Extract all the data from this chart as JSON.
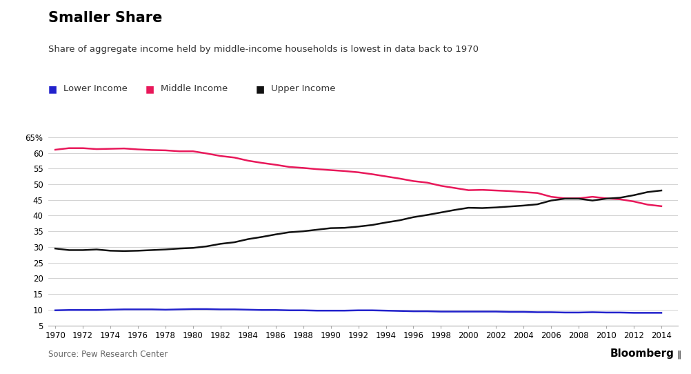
{
  "title": "Smaller Share",
  "subtitle": "Share of aggregate income held by middle-income households is lowest in data back to 1970",
  "source": "Source: Pew Research Center",
  "years": [
    1970,
    1971,
    1972,
    1973,
    1974,
    1975,
    1976,
    1977,
    1978,
    1979,
    1980,
    1981,
    1982,
    1983,
    1984,
    1985,
    1986,
    1987,
    1988,
    1989,
    1990,
    1991,
    1992,
    1993,
    1994,
    1995,
    1996,
    1997,
    1998,
    1999,
    2000,
    2001,
    2002,
    2003,
    2004,
    2005,
    2006,
    2007,
    2008,
    2009,
    2010,
    2011,
    2012,
    2013,
    2014
  ],
  "lower_income": [
    9.8,
    9.9,
    9.9,
    9.9,
    10.0,
    10.1,
    10.1,
    10.1,
    10.0,
    10.1,
    10.2,
    10.2,
    10.1,
    10.1,
    10.0,
    9.9,
    9.9,
    9.8,
    9.8,
    9.7,
    9.7,
    9.7,
    9.8,
    9.8,
    9.7,
    9.6,
    9.5,
    9.5,
    9.4,
    9.4,
    9.4,
    9.4,
    9.4,
    9.3,
    9.3,
    9.2,
    9.2,
    9.1,
    9.1,
    9.2,
    9.1,
    9.1,
    9.0,
    9.0,
    9.0
  ],
  "middle_income": [
    61.0,
    61.5,
    61.5,
    61.2,
    61.3,
    61.4,
    61.1,
    60.9,
    60.8,
    60.5,
    60.5,
    59.8,
    59.0,
    58.5,
    57.5,
    56.8,
    56.2,
    55.5,
    55.2,
    54.8,
    54.5,
    54.2,
    53.8,
    53.2,
    52.5,
    51.8,
    51.0,
    50.5,
    49.5,
    48.8,
    48.1,
    48.2,
    48.0,
    47.8,
    47.5,
    47.2,
    46.0,
    45.5,
    45.5,
    46.0,
    45.5,
    45.2,
    44.5,
    43.5,
    43.0
  ],
  "upper_income": [
    29.5,
    29.0,
    29.0,
    29.2,
    28.8,
    28.7,
    28.8,
    29.0,
    29.2,
    29.5,
    29.7,
    30.2,
    31.0,
    31.5,
    32.5,
    33.2,
    34.0,
    34.7,
    35.0,
    35.5,
    36.0,
    36.1,
    36.5,
    37.0,
    37.8,
    38.5,
    39.5,
    40.2,
    41.0,
    41.8,
    42.5,
    42.4,
    42.6,
    42.9,
    43.2,
    43.6,
    44.8,
    45.4,
    45.4,
    44.8,
    45.4,
    45.7,
    46.5,
    47.5,
    48.0
  ],
  "lower_color": "#2222cc",
  "middle_color": "#e8185a",
  "upper_color": "#111111",
  "background_color": "#ffffff",
  "yticks": [
    5,
    10,
    15,
    20,
    25,
    30,
    35,
    40,
    45,
    50,
    55,
    60,
    65
  ],
  "ylim": [
    5,
    67
  ],
  "line_width": 1.8
}
